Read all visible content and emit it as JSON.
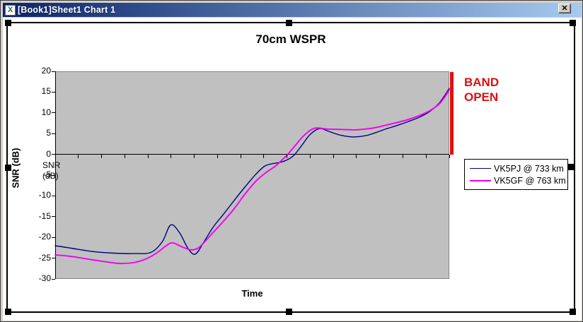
{
  "window": {
    "title": "[Book1]Sheet1 Chart 1",
    "app_icon_glyph": "X",
    "close_glyph": "x"
  },
  "chart": {
    "title": "70cm WSPR",
    "x_axis_title": "Time",
    "y_axis_title": "SNR (dB)",
    "floating_label_line1": "SNR",
    "floating_label_line2": "(dB)",
    "annotation": {
      "line1": "BAND",
      "line2": "OPEN",
      "color": "#dd1010"
    },
    "colors": {
      "plot_background": "#c0c0c0",
      "series1": "#00007f",
      "series2": "#f000f0",
      "titlebar_left": "#0a246a",
      "titlebar_right": "#a6caf0"
    },
    "legend": {
      "items": [
        {
          "label": "VK5PJ @ 733 km",
          "color": "#00007f",
          "line_thickness": 1.5
        },
        {
          "label": "VK5GF @ 763 km",
          "color": "#f000f0",
          "line_thickness": 2
        }
      ]
    }
  },
  "chart_data": {
    "type": "line",
    "title": "70cm WSPR",
    "xlabel": "Time",
    "ylabel": "SNR (dB)",
    "ylim": [
      -30,
      20
    ],
    "y_ticks": [
      20,
      15,
      10,
      5,
      0,
      -5,
      -10,
      -15,
      -20,
      -25,
      -30
    ],
    "x_tick_intervals": 17,
    "x_tick_labels": [],
    "grid": false,
    "legend_position": "right-middle",
    "series": [
      {
        "name": "VK5PJ @ 733 km",
        "color": "#00007f",
        "stroke_width": 1.4,
        "points": [
          [
            0,
            -22
          ],
          [
            0.041,
            -22.6
          ],
          [
            0.095,
            -23.4
          ],
          [
            0.149,
            -23.8
          ],
          [
            0.203,
            -23.9
          ],
          [
            0.243,
            -23.6
          ],
          [
            0.272,
            -21
          ],
          [
            0.293,
            -17
          ],
          [
            0.315,
            -18.8
          ],
          [
            0.338,
            -22.8
          ],
          [
            0.356,
            -24
          ],
          [
            0.378,
            -21
          ],
          [
            0.401,
            -17.5
          ],
          [
            0.428,
            -14.3
          ],
          [
            0.455,
            -11
          ],
          [
            0.482,
            -7.8
          ],
          [
            0.509,
            -4.8
          ],
          [
            0.532,
            -2.8
          ],
          [
            0.554,
            -2.2
          ],
          [
            0.576,
            -1.8
          ],
          [
            0.595,
            -1
          ],
          [
            0.608,
            0
          ],
          [
            0.626,
            2.2
          ],
          [
            0.647,
            4.8
          ],
          [
            0.671,
            6.2
          ],
          [
            0.698,
            5.4
          ],
          [
            0.725,
            4.6
          ],
          [
            0.755,
            4.2
          ],
          [
            0.788,
            4.5
          ],
          [
            0.815,
            5.3
          ],
          [
            0.842,
            6.2
          ],
          [
            0.869,
            7
          ],
          [
            0.896,
            7.9
          ],
          [
            0.923,
            8.9
          ],
          [
            0.95,
            10.3
          ],
          [
            0.973,
            12.2
          ],
          [
            0.987,
            14
          ],
          [
            1,
            15.9
          ]
        ]
      },
      {
        "name": "VK5GF @ 763 km",
        "color": "#f000f0",
        "stroke_width": 1.9,
        "points": [
          [
            0,
            -24.2
          ],
          [
            0.041,
            -24.6
          ],
          [
            0.095,
            -25.4
          ],
          [
            0.131,
            -25.9
          ],
          [
            0.167,
            -26.3
          ],
          [
            0.203,
            -26
          ],
          [
            0.23,
            -25.2
          ],
          [
            0.257,
            -23.8
          ],
          [
            0.279,
            -22.2
          ],
          [
            0.297,
            -21.3
          ],
          [
            0.32,
            -22.2
          ],
          [
            0.344,
            -23
          ],
          [
            0.362,
            -22.6
          ],
          [
            0.378,
            -21.2
          ],
          [
            0.401,
            -18.8
          ],
          [
            0.428,
            -16
          ],
          [
            0.455,
            -13
          ],
          [
            0.482,
            -9.5
          ],
          [
            0.509,
            -6.5
          ],
          [
            0.536,
            -4.3
          ],
          [
            0.559,
            -2.8
          ],
          [
            0.577,
            -1.2
          ],
          [
            0.59,
            0
          ],
          [
            0.608,
            2
          ],
          [
            0.631,
            4.5
          ],
          [
            0.658,
            6.3
          ],
          [
            0.689,
            6.1
          ],
          [
            0.725,
            6
          ],
          [
            0.761,
            5.9
          ],
          [
            0.788,
            6.1
          ],
          [
            0.815,
            6.5
          ],
          [
            0.842,
            7.1
          ],
          [
            0.869,
            7.7
          ],
          [
            0.896,
            8.4
          ],
          [
            0.923,
            9.3
          ],
          [
            0.95,
            10.5
          ],
          [
            0.973,
            12
          ],
          [
            0.987,
            13.6
          ],
          [
            1,
            15.5
          ]
        ]
      }
    ],
    "annotations": [
      {
        "text": "BAND OPEN",
        "color": "#dd1010",
        "bar_span_db": [
          0,
          20
        ],
        "position": "right edge of plot"
      }
    ]
  }
}
